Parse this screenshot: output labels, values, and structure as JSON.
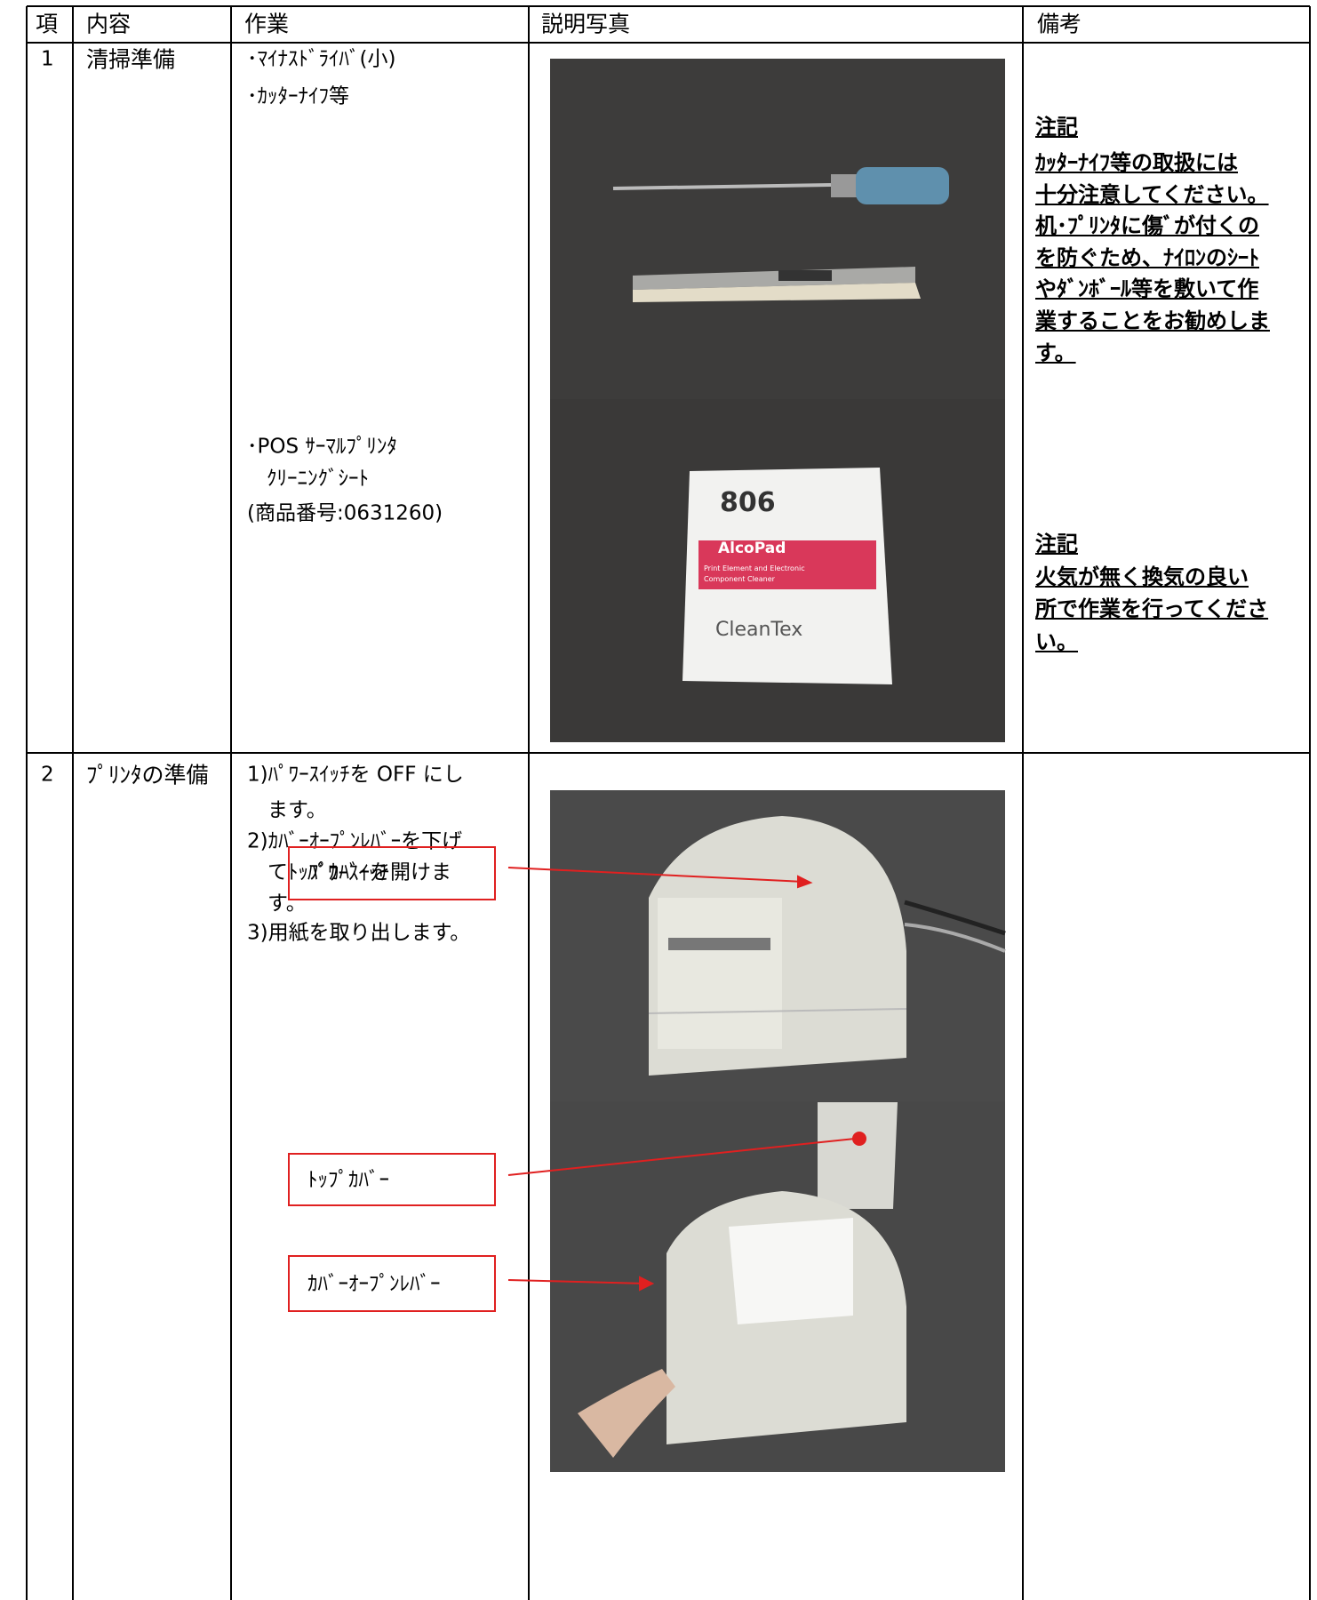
{
  "table": {
    "headers": [
      "項",
      "内容",
      "作業",
      "説明写真",
      "備考"
    ],
    "rows": [
      {
        "no": "1",
        "content": "清掃準備",
        "tasks": [
          "･ﾏｲﾅｽﾄﾞﾗｲﾊﾞ(小)",
          "･ｶｯﾀｰﾅｲﾌ等"
        ],
        "tasks2": [
          "･POS ｻｰﾏﾙﾌﾟﾘﾝﾀ",
          "ｸﾘｰﾆﾝｸﾞｼｰﾄ",
          "(商品番号:0631260)"
        ],
        "photo_texts": [
          "806",
          "AlcoPad",
          "Print Element and Electronic",
          "Component Cleaner",
          "CleanTex"
        ],
        "notes": [
          {
            "heading": "注記",
            "lines": [
              "ｶｯﾀｰﾅｲﾌ等の取扱には",
              "十分注意してください。",
              "机･ﾌﾟﾘﾝﾀに傷ﾞが付くの",
              "を防ぐため、ﾅｲﾛﾝのｼｰﾄ",
              "やﾀﾞﾝﾎﾞｰﾙ等を敷いて作",
              "業することをお勧めしま",
              "す。"
            ]
          },
          {
            "heading": "注記",
            "lines": [
              "火気が無く換気の良い",
              "所で作業を行ってくださ",
              "い。"
            ]
          }
        ]
      },
      {
        "no": "2",
        "content": "ﾌﾟﾘﾝﾀの準備",
        "tasks": [
          "1)ﾊﾟﾜｰｽｲｯﾁを OFF にし",
          "ます。",
          "2)ｶﾊﾞｰｵｰﾌﾟﾝﾚﾊﾞｰを下げ",
          "てﾄｯﾌﾟｶﾊﾞｰを開けま",
          "す。",
          "3)用紙を取り出します。"
        ],
        "callouts": [
          "ﾊﾟﾜｰｽｲｯﾁ",
          "ﾄｯﾌﾟｶﾊﾞｰ",
          "ｶﾊﾞｰｵｰﾌﾟﾝﾚﾊﾞｰ"
        ]
      }
    ]
  }
}
